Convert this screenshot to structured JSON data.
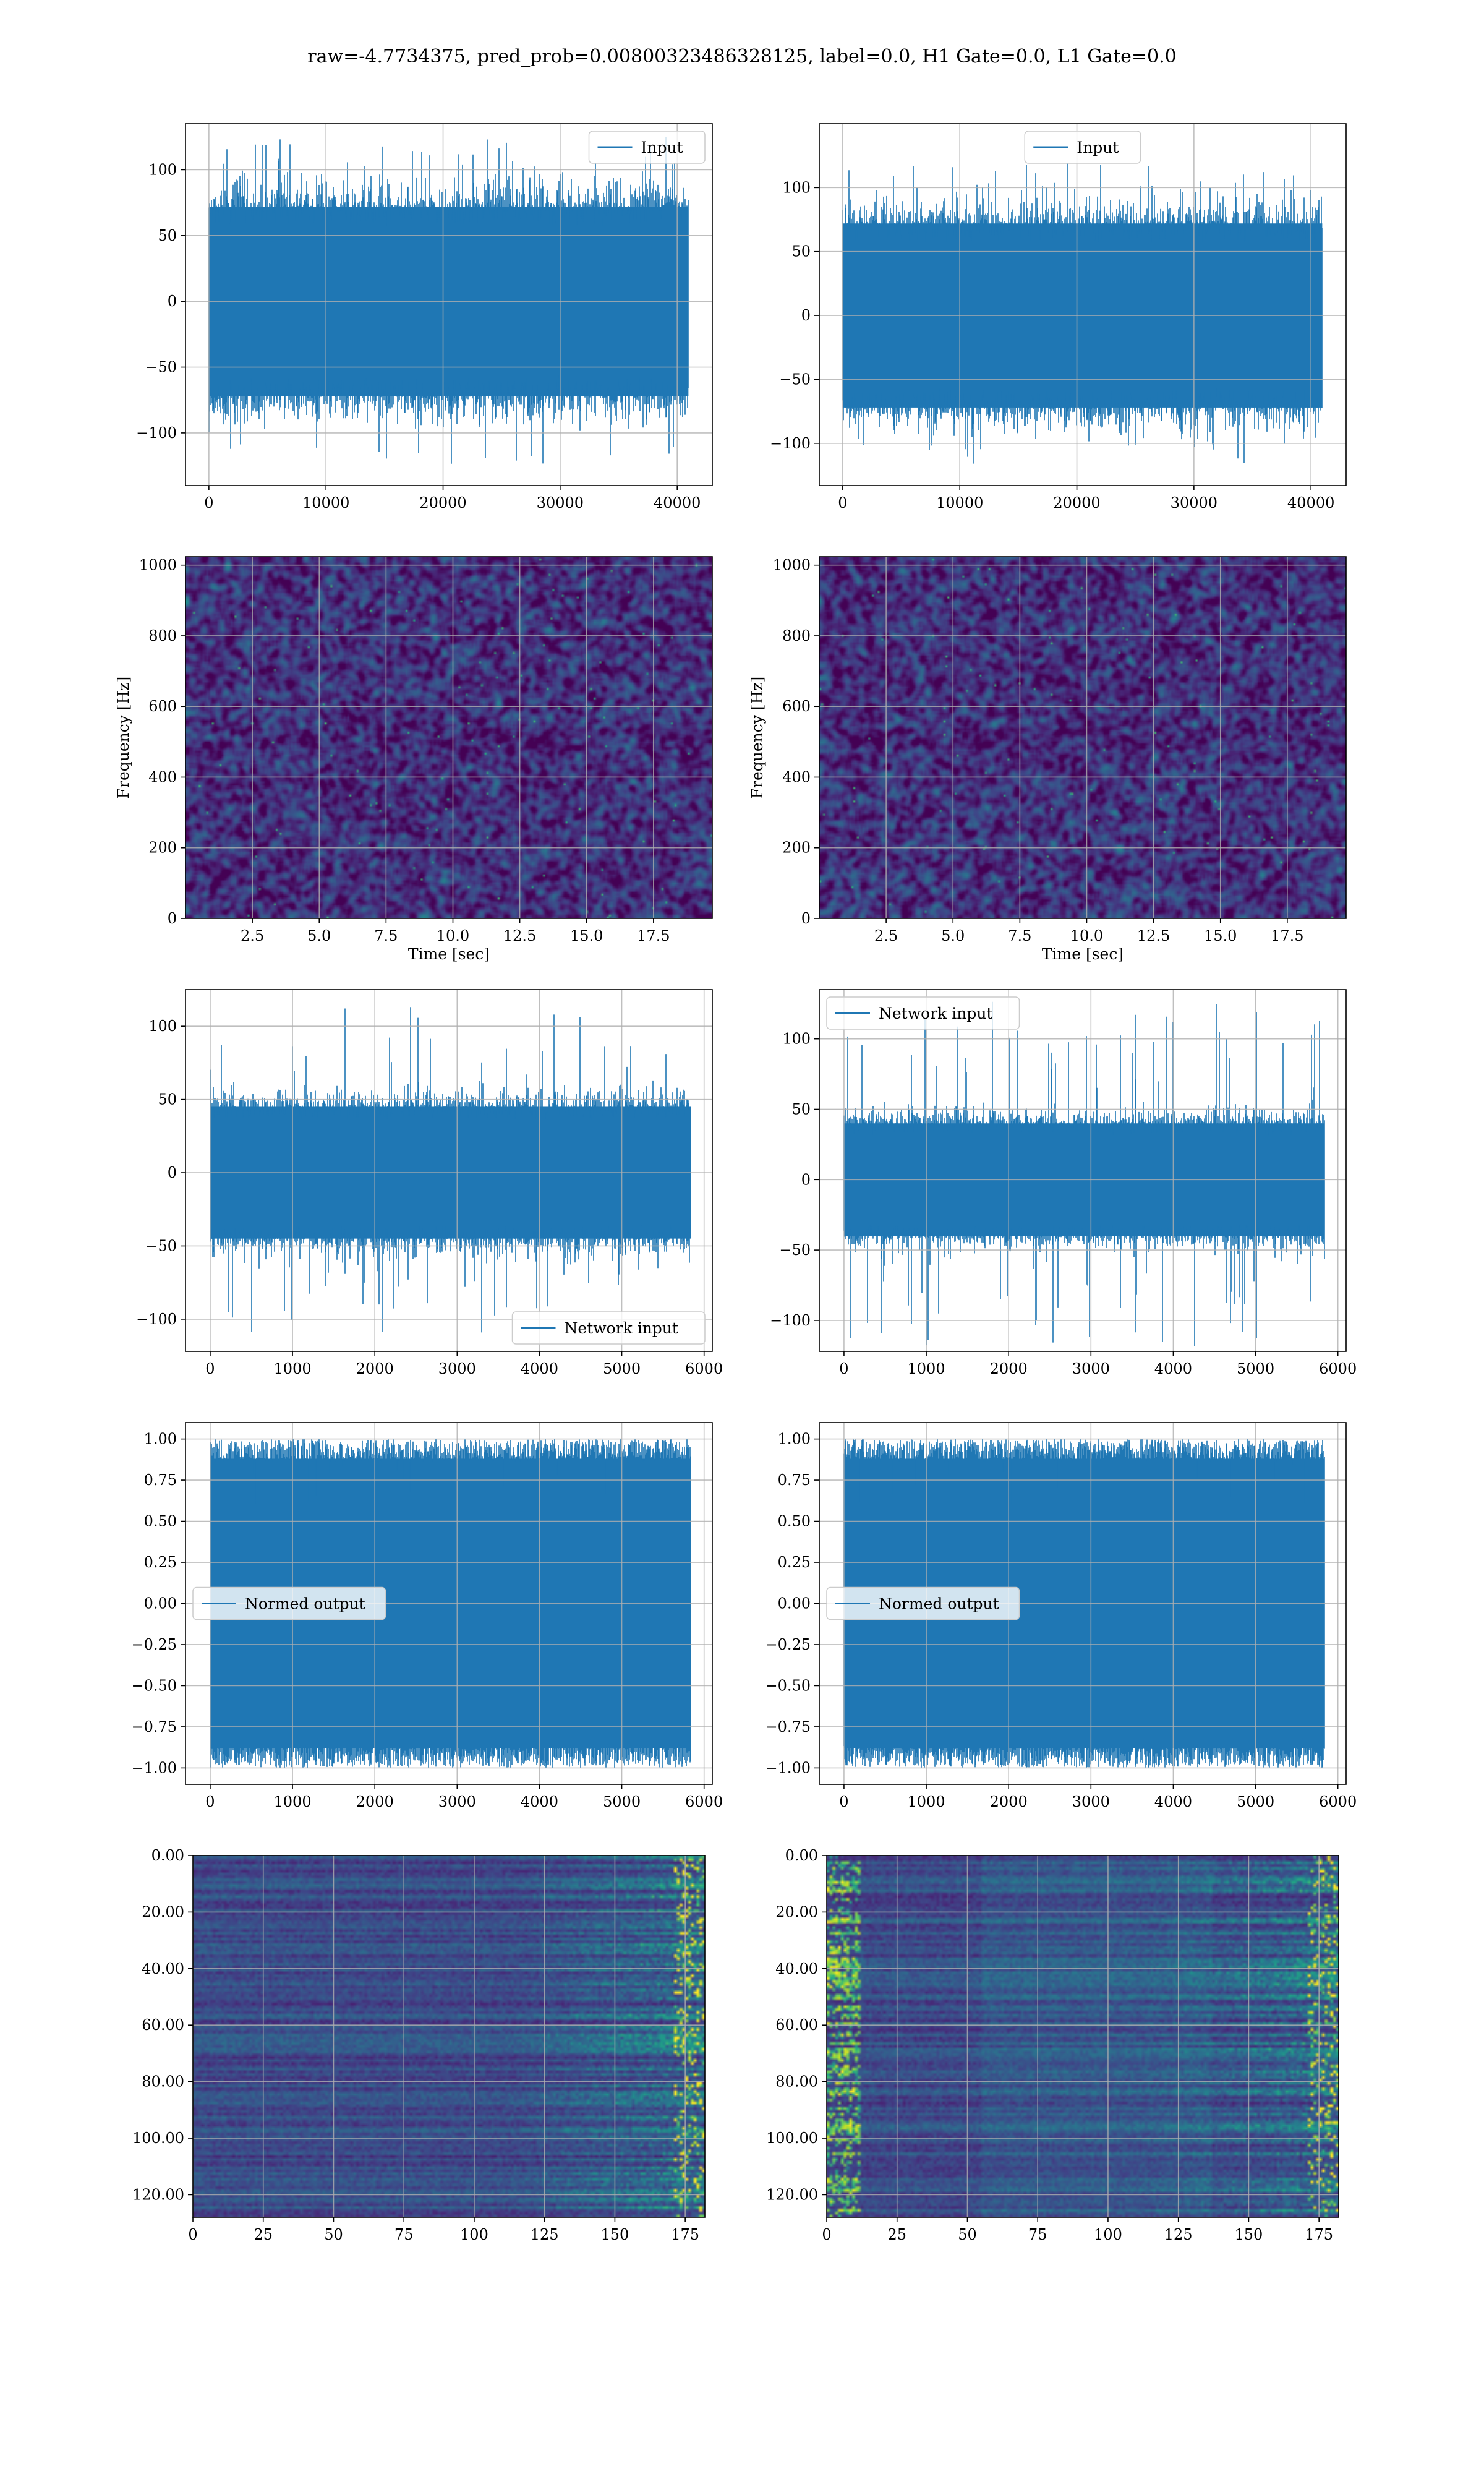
{
  "figure": {
    "suptitle": "raw=-4.7734375, pred_prob=0.00800323486328125, label=0.0, H1 Gate=0.0, L1 Gate=0.0",
    "colors": {
      "series": "#1f77b4",
      "grid": "#b0b0b0",
      "colormap": "viridis",
      "background": "#ffffff"
    }
  },
  "chart_data": [
    {
      "id": "row1-left",
      "type": "line",
      "title": "",
      "xlabel": "",
      "ylabel": "",
      "legend": {
        "entries": [
          "Input"
        ],
        "placement": "top-right"
      },
      "xlim": [
        -2000,
        43000
      ],
      "ylim": [
        -140,
        135
      ],
      "xticks": [
        0,
        10000,
        20000,
        30000,
        40000
      ],
      "yticks": [
        -100,
        -50,
        0,
        50,
        100
      ],
      "series": [
        {
          "name": "Input",
          "x_range": [
            0,
            40960
          ],
          "core_amplitude": 72,
          "peak_amplitude": 128
        }
      ],
      "grid": true
    },
    {
      "id": "row1-right",
      "type": "line",
      "title": "",
      "xlabel": "",
      "ylabel": "",
      "legend": {
        "entries": [
          "Input"
        ],
        "placement": "top-center"
      },
      "xlim": [
        -2000,
        43000
      ],
      "ylim": [
        -133,
        150
      ],
      "xticks": [
        0,
        10000,
        20000,
        30000,
        40000
      ],
      "yticks": [
        -100,
        -50,
        0,
        50,
        100
      ],
      "series": [
        {
          "name": "Input",
          "x_range": [
            0,
            40960
          ],
          "core_amplitude": 72,
          "peak_amplitude": 120
        }
      ],
      "grid": true
    },
    {
      "id": "row2-left",
      "type": "heatmap",
      "title": "",
      "xlabel": "Time [sec]",
      "ylabel": "Frequency [Hz]",
      "xlim": [
        0,
        19.7
      ],
      "ylim": [
        0,
        1024
      ],
      "xticks": [
        2.5,
        5.0,
        7.5,
        10.0,
        12.5,
        15.0,
        17.5
      ],
      "yticks": [
        0,
        200,
        400,
        600,
        800,
        1000
      ],
      "colormap": "viridis",
      "grid": true
    },
    {
      "id": "row2-right",
      "type": "heatmap",
      "title": "",
      "xlabel": "Time [sec]",
      "ylabel": "Frequency [Hz]",
      "xlim": [
        0,
        19.7
      ],
      "ylim": [
        0,
        1024
      ],
      "xticks": [
        2.5,
        5.0,
        7.5,
        10.0,
        12.5,
        15.0,
        17.5
      ],
      "yticks": [
        0,
        200,
        400,
        600,
        800,
        1000
      ],
      "colormap": "viridis",
      "grid": true
    },
    {
      "id": "row3-left",
      "type": "line",
      "title": "",
      "xlabel": "",
      "ylabel": "",
      "legend": {
        "entries": [
          "Network input"
        ],
        "placement": "bottom-right"
      },
      "xlim": [
        -300,
        6100
      ],
      "ylim": [
        -122,
        125
      ],
      "xticks": [
        0,
        1000,
        2000,
        3000,
        4000,
        5000,
        6000
      ],
      "yticks": [
        -100,
        -50,
        0,
        50,
        100
      ],
      "series": [
        {
          "name": "Network input",
          "x_range": [
            0,
            5840
          ],
          "core_amplitude": 45,
          "peak_amplitude": 115
        }
      ],
      "grid": true
    },
    {
      "id": "row3-right",
      "type": "line",
      "title": "",
      "xlabel": "",
      "ylabel": "",
      "legend": {
        "entries": [
          "Network input"
        ],
        "placement": "top-left"
      },
      "xlim": [
        -300,
        6100
      ],
      "ylim": [
        -122,
        135
      ],
      "xticks": [
        0,
        1000,
        2000,
        3000,
        4000,
        5000,
        6000
      ],
      "yticks": [
        -100,
        -50,
        0,
        50,
        100
      ],
      "series": [
        {
          "name": "Network input",
          "x_range": [
            0,
            5840
          ],
          "core_amplitude": 40,
          "peak_amplitude": 127
        }
      ],
      "grid": true
    },
    {
      "id": "row4-left",
      "type": "line",
      "title": "",
      "xlabel": "",
      "ylabel": "",
      "legend": {
        "entries": [
          "Normed output"
        ],
        "placement": "center-left"
      },
      "xlim": [
        -300,
        6100
      ],
      "ylim": [
        -1.1,
        1.1
      ],
      "xticks": [
        0,
        1000,
        2000,
        3000,
        4000,
        5000,
        6000
      ],
      "yticks": [
        -1.0,
        -0.75,
        -0.5,
        -0.25,
        0.0,
        0.25,
        0.5,
        0.75,
        1.0
      ],
      "series": [
        {
          "name": "Normed output",
          "x_range": [
            0,
            5840
          ],
          "core_amplitude": 0.88,
          "peak_amplitude": 1.0
        }
      ],
      "grid": true
    },
    {
      "id": "row4-right",
      "type": "line",
      "title": "",
      "xlabel": "",
      "ylabel": "",
      "legend": {
        "entries": [
          "Normed output"
        ],
        "placement": "center-left"
      },
      "xlim": [
        -300,
        6100
      ],
      "ylim": [
        -1.1,
        1.1
      ],
      "xticks": [
        0,
        1000,
        2000,
        3000,
        4000,
        5000,
        6000
      ],
      "yticks": [
        -1.0,
        -0.75,
        -0.5,
        -0.25,
        0.0,
        0.25,
        0.5,
        0.75,
        1.0
      ],
      "series": [
        {
          "name": "Normed output",
          "x_range": [
            0,
            5840
          ],
          "core_amplitude": 0.88,
          "peak_amplitude": 1.0
        }
      ],
      "grid": true
    },
    {
      "id": "row5-left",
      "type": "heatmap",
      "title": "",
      "xlabel": "",
      "ylabel": "",
      "xlim": [
        0,
        182
      ],
      "ylim": [
        128,
        0
      ],
      "xticks": [
        0,
        25,
        50,
        75,
        100,
        125,
        150,
        175
      ],
      "yticks": [
        0,
        20,
        40,
        60,
        80,
        100,
        120
      ],
      "rows": 128,
      "cols": 182,
      "colormap": "viridis",
      "bright_region": "right edge",
      "grid": true
    },
    {
      "id": "row5-right",
      "type": "heatmap",
      "title": "",
      "xlabel": "",
      "ylabel": "",
      "xlim": [
        0,
        182
      ],
      "ylim": [
        128,
        0
      ],
      "xticks": [
        0,
        25,
        50,
        75,
        100,
        125,
        150,
        175
      ],
      "yticks": [
        0,
        20,
        40,
        60,
        80,
        100,
        120
      ],
      "rows": 128,
      "cols": 182,
      "colormap": "viridis",
      "bright_region": "left and right edges",
      "grid": true
    }
  ]
}
